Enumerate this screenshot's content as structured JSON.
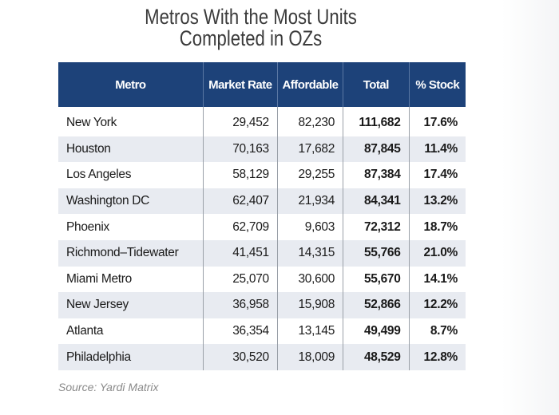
{
  "chart_data": {
    "type": "table",
    "title": "Metros With the Most Units Completed in OZs",
    "title_lines": [
      "Metros With the Most Units",
      "Completed in OZs"
    ],
    "columns": [
      "Metro",
      "Market Rate",
      "Affordable",
      "Total",
      "% Stock"
    ],
    "rows": [
      [
        "New York",
        "29,452",
        "82,230",
        "111,682",
        "17.6%"
      ],
      [
        "Houston",
        "70,163",
        "17,682",
        "87,845",
        "11.4%"
      ],
      [
        "Los Angeles",
        "58,129",
        "29,255",
        "87,384",
        "17.4%"
      ],
      [
        "Washington DC",
        "62,407",
        "21,934",
        "84,341",
        "13.2%"
      ],
      [
        "Phoenix",
        "62,709",
        "9,603",
        "72,312",
        "18.7%"
      ],
      [
        "Richmond–Tidewater",
        "41,451",
        "14,315",
        "55,766",
        "21.0%"
      ],
      [
        "Miami Metro",
        "25,070",
        "30,600",
        "55,670",
        "14.1%"
      ],
      [
        "New Jersey",
        "36,958",
        "15,908",
        "52,866",
        "12.2%"
      ],
      [
        "Atlanta",
        "36,354",
        "13,145",
        "49,499",
        "8.7%"
      ],
      [
        "Philadelphia",
        "30,520",
        "18,009",
        "48,529",
        "12.8%"
      ]
    ],
    "source": "Source: Yardi Matrix",
    "colors": {
      "header": "#1d4279",
      "stripe": "#e8ebf1"
    }
  }
}
